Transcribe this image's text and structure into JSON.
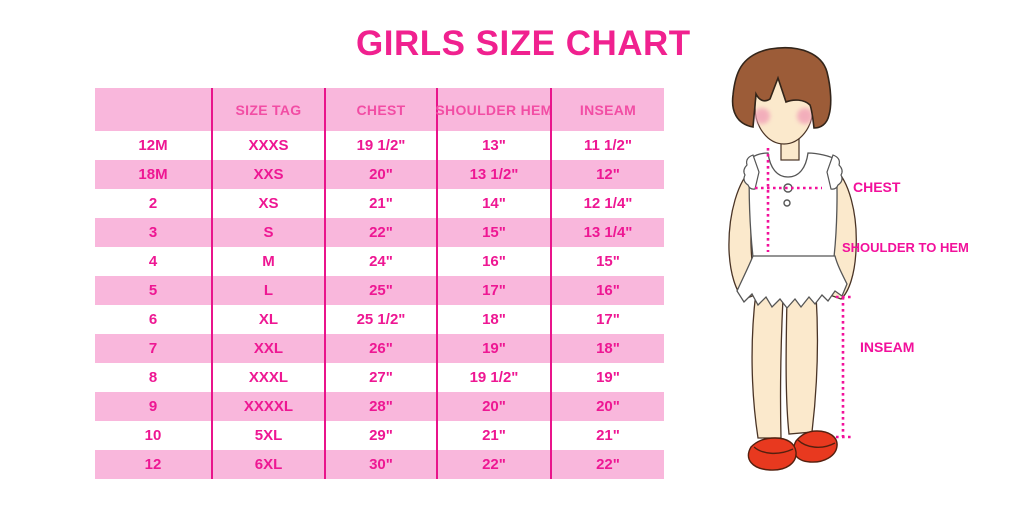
{
  "title": "GIRLS SIZE CHART",
  "chart_data": {
    "type": "table",
    "title": "GIRLS SIZE CHART",
    "columns": [
      "",
      "SIZE TAG",
      "CHEST",
      "SHOULDER HEM",
      "INSEAM"
    ],
    "rows": [
      [
        "12M",
        "XXXS",
        "19 1/2\"",
        "13\"",
        "11 1/2\""
      ],
      [
        "18M",
        "XXS",
        "20\"",
        "13 1/2\"",
        "12\""
      ],
      [
        "2",
        "XS",
        "21\"",
        "14\"",
        "12 1/4\""
      ],
      [
        "3",
        "S",
        "22\"",
        "15\"",
        "13 1/4\""
      ],
      [
        "4",
        "M",
        "24\"",
        "16\"",
        "15\""
      ],
      [
        "5",
        "L",
        "25\"",
        "17\"",
        "16\""
      ],
      [
        "6",
        "XL",
        "25 1/2\"",
        "18\"",
        "17\""
      ],
      [
        "7",
        "XXL",
        "26\"",
        "19\"",
        "18\""
      ],
      [
        "8",
        "XXXL",
        "27\"",
        "19 1/2\"",
        "19\""
      ],
      [
        "9",
        "XXXXL",
        "28\"",
        "20\"",
        "20\""
      ],
      [
        "10",
        "5XL",
        "29\"",
        "21\"",
        "21\""
      ],
      [
        "12",
        "6XL",
        "30\"",
        "22\"",
        "22\""
      ]
    ],
    "row_striping": "white/pink alternating starting white",
    "layout_hints": {
      "dividers": "vertical magenta lines between all 5 columns",
      "outer_border": "none"
    }
  },
  "diagram_labels": {
    "chest": "CHEST",
    "shoulder_to_hem": "SHOULDER TO HEM",
    "inseam": "INSEAM"
  },
  "colors": {
    "title_pink": "#F0218F",
    "band_pink": "#F9B7DC",
    "divider_pink": "#E9148B",
    "header_text_pink": "#F24DA4",
    "cell_text_pink": "#EE1793",
    "measure_label_pink": "#F2109B",
    "hair_brown": "#9C5C38",
    "skin": "#FBE9CC",
    "blush": "#F1A0B7",
    "shoe_red": "#E8391F",
    "garment_white": "#FFFFFF",
    "outline_gray": "#555555"
  }
}
